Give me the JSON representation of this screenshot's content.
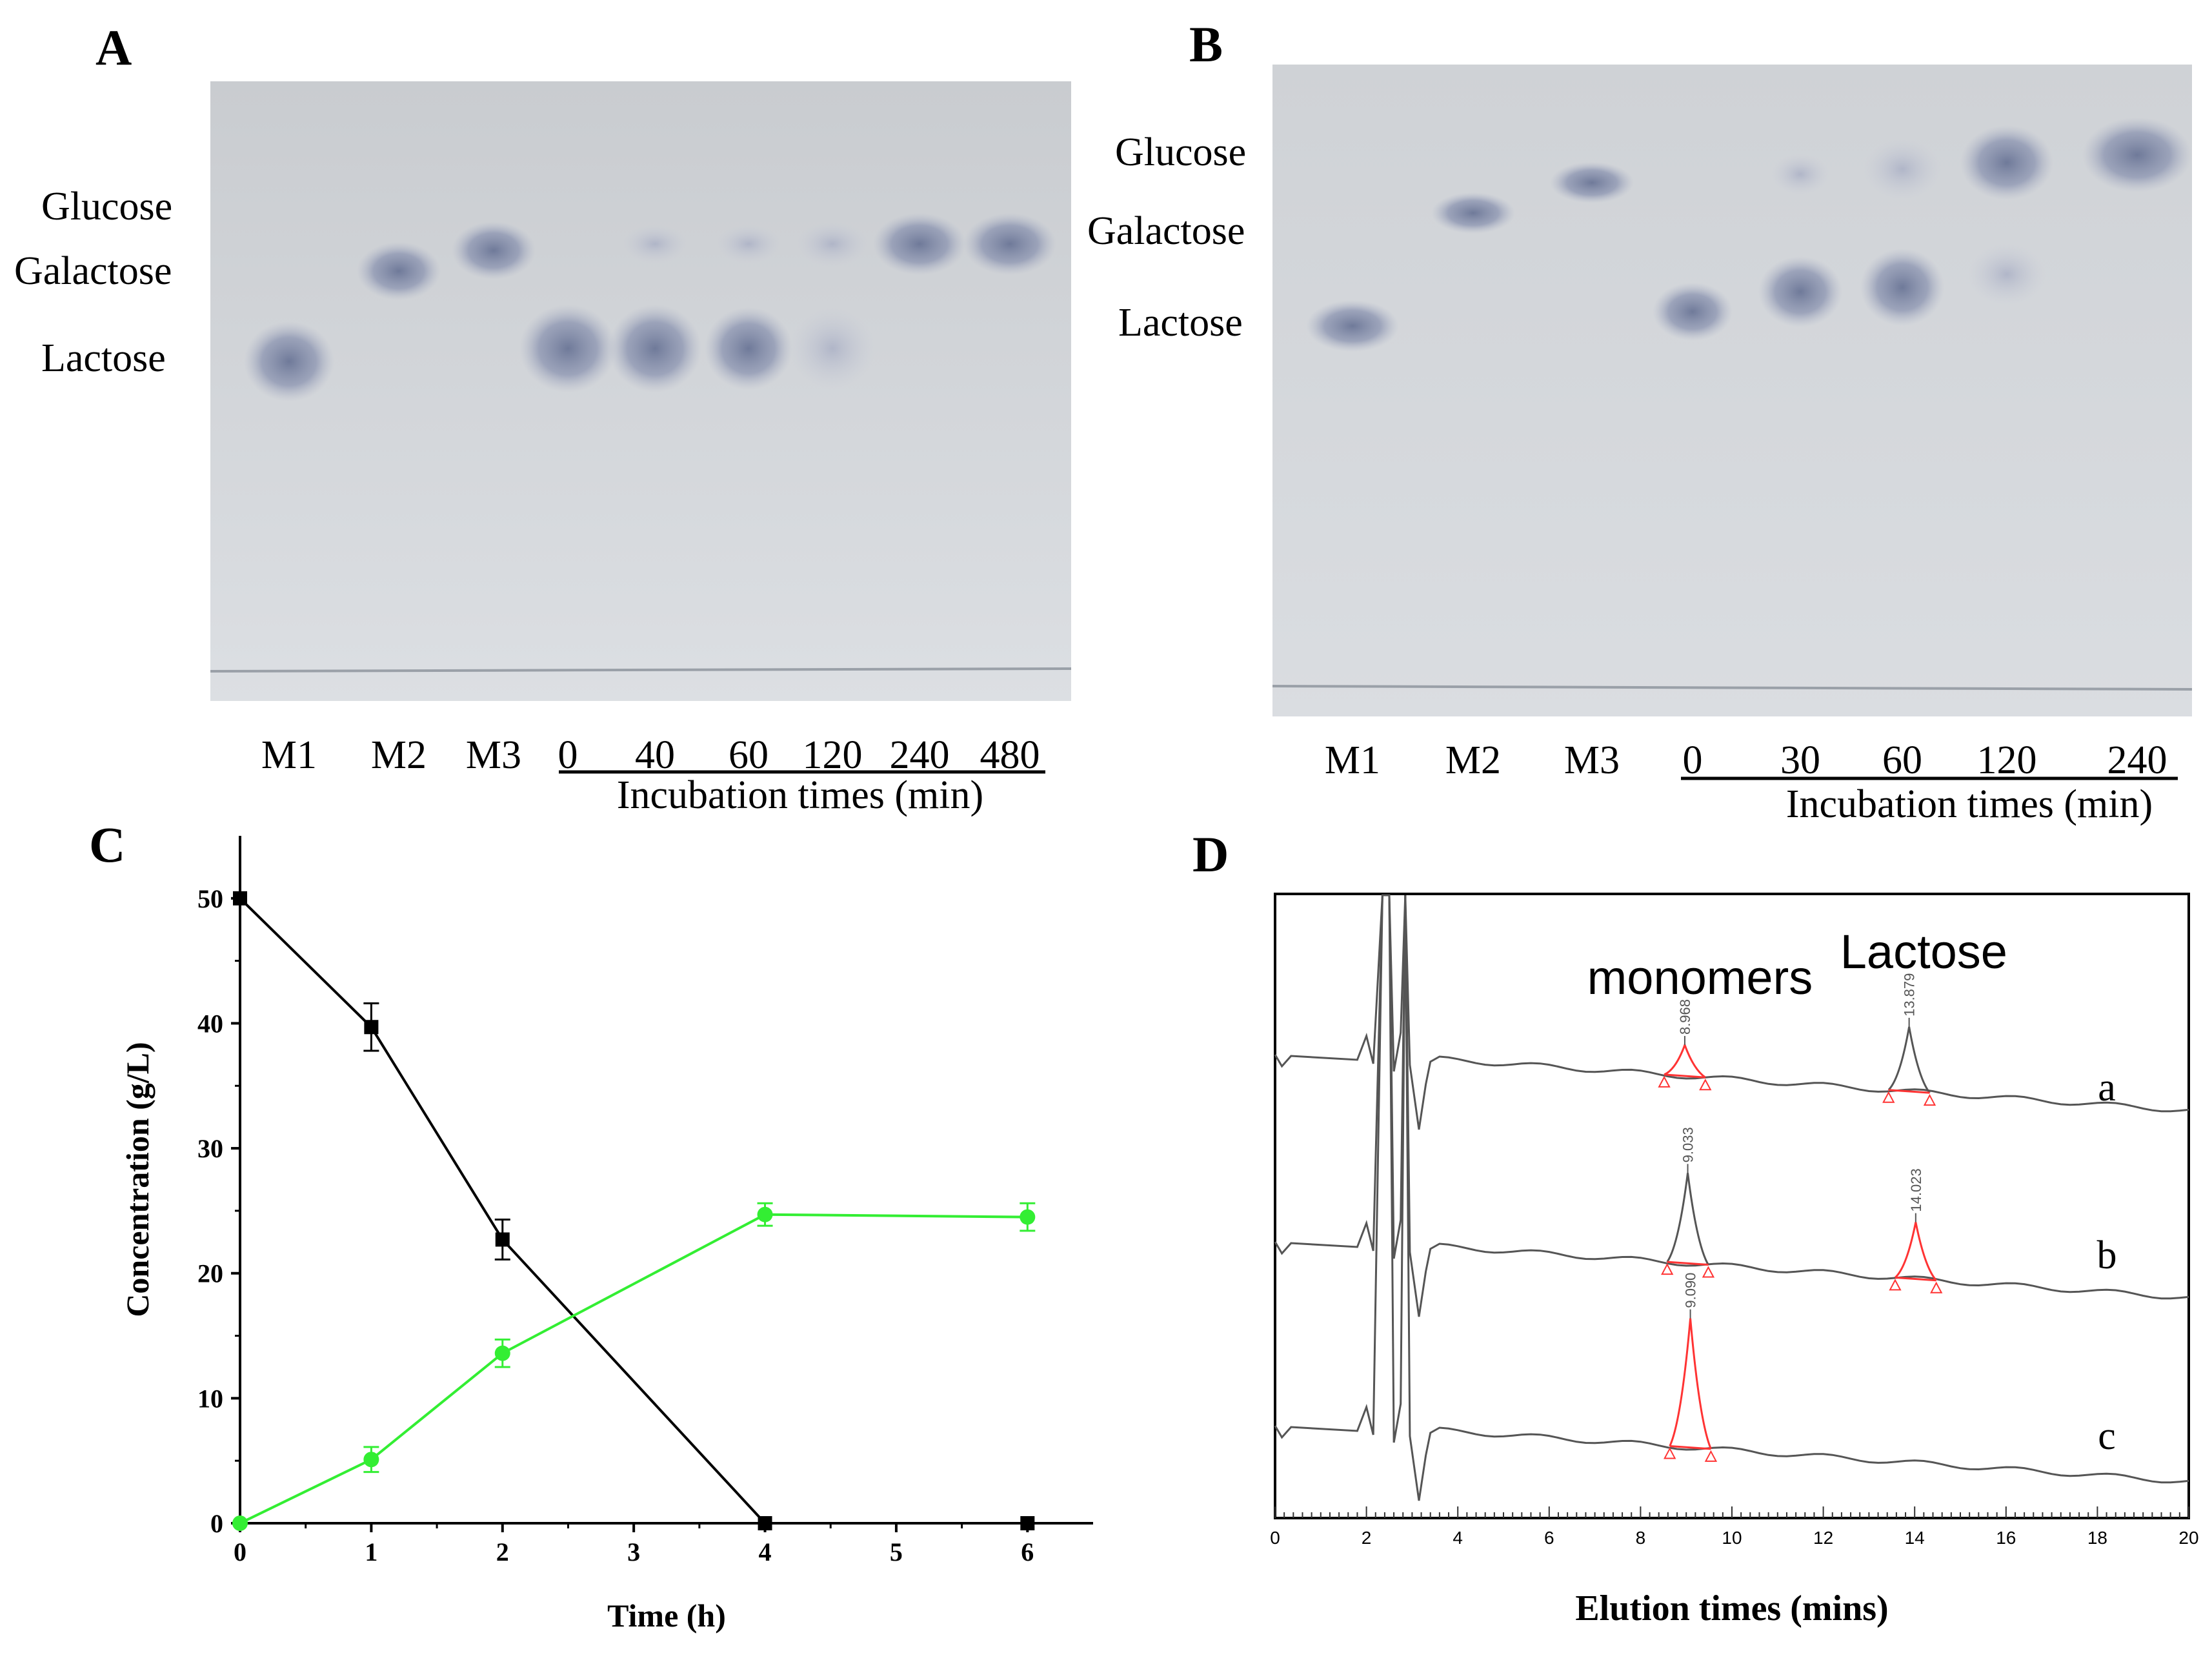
{
  "panels": {
    "A": {
      "label": "A",
      "spot_labels": [
        "Glucose",
        "Galactose",
        "Lactose"
      ],
      "lanes": [
        "M1",
        "M2",
        "M3",
        "0",
        "40",
        "60",
        "120",
        "240",
        "480"
      ],
      "caption": "Incubation times (min)"
    },
    "B": {
      "label": "B",
      "spot_labels": [
        "Glucose",
        "Galactose",
        "Lactose"
      ],
      "lanes": [
        "M1",
        "M2",
        "M3",
        "0",
        "30",
        "60",
        "120",
        "240"
      ],
      "caption": "Incubation times (min)"
    },
    "C": {
      "label": "C"
    },
    "D": {
      "label": "D"
    }
  },
  "chart_data": [
    {
      "panel": "C",
      "type": "line",
      "xlabel": "Time (h)",
      "ylabel": "Concentration (g/L)",
      "xlim": [
        0,
        6.5
      ],
      "ylim": [
        0,
        55
      ],
      "xticks": [
        0,
        1,
        2,
        3,
        4,
        5,
        6
      ],
      "yticks": [
        0,
        10,
        20,
        30,
        40,
        50
      ],
      "grid": false,
      "series": [
        {
          "color": "#000000",
          "marker": "square",
          "x": [
            0,
            1,
            2,
            4,
            6
          ],
          "y": [
            50,
            39.7,
            22.7,
            0,
            0
          ],
          "err": [
            0,
            1.9,
            1.6,
            0,
            0
          ]
        },
        {
          "color": "#33ee33",
          "marker": "circle",
          "x": [
            0,
            1,
            2,
            4,
            6
          ],
          "y": [
            0,
            5.1,
            13.6,
            24.7,
            24.5
          ],
          "err": [
            0,
            1.0,
            1.1,
            0.9,
            1.1
          ]
        }
      ]
    },
    {
      "panel": "D",
      "type": "line",
      "xlabel": "Elution times (mins)",
      "xlim": [
        0,
        20
      ],
      "xticks": [
        0,
        2,
        4,
        6,
        8,
        10,
        12,
        14,
        16,
        18,
        20
      ],
      "peak_group_labels": [
        "monomers",
        "Lactose"
      ],
      "traces": [
        {
          "name": "a",
          "peaks": [
            {
              "rt": "8.968",
              "x": 8.968
            },
            {
              "rt": "13.879",
              "x": 13.879
            }
          ]
        },
        {
          "name": "b",
          "peaks": [
            {
              "rt": "9.033",
              "x": 9.033
            },
            {
              "rt": "14.023",
              "x": 14.023
            }
          ]
        },
        {
          "name": "c",
          "peaks": [
            {
              "rt": "9.090",
              "x": 9.09
            }
          ]
        }
      ],
      "colors": {
        "trace": "#555555",
        "integration": "#ff3333"
      }
    }
  ]
}
